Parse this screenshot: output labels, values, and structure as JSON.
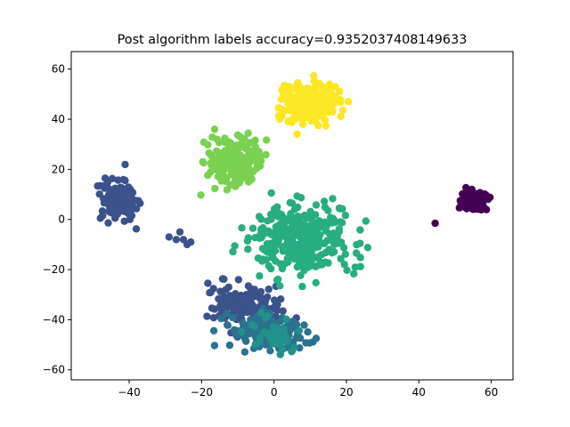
{
  "chart_data": {
    "type": "scatter",
    "title": "Post algorithm labels accuracy=0.9352037408149633",
    "xlabel": "",
    "ylabel": "",
    "xlim": [
      -56,
      66
    ],
    "ylim": [
      -64,
      67
    ],
    "xticks": [
      -40,
      -20,
      0,
      20,
      40,
      60
    ],
    "yticks": [
      -60,
      -40,
      -20,
      0,
      20,
      40,
      60
    ],
    "xtick_labels": [
      "−40",
      "−20",
      "0",
      "20",
      "40",
      "60"
    ],
    "ytick_labels": [
      "−60",
      "−40",
      "−20",
      "0",
      "20",
      "40",
      "60"
    ],
    "grid": false,
    "legend": "none",
    "marker": "filled circle",
    "colormap": "viridis",
    "clusters": [
      {
        "label": 0,
        "color": "#440154",
        "center": [
          55,
          7
        ],
        "spread": [
          3.2,
          3.0
        ],
        "count": 95,
        "extra_points": [
          [
            44.5,
            -1.5
          ]
        ]
      },
      {
        "label": 1,
        "color": "#3b528b",
        "center": [
          -43,
          8
        ],
        "spread": [
          3.8,
          6.5
        ],
        "count": 110,
        "extra_points": [
          [
            -29,
            -7
          ],
          [
            -27,
            -8
          ],
          [
            -25,
            -8
          ],
          [
            -24,
            -10
          ],
          [
            -26,
            -5
          ],
          [
            -23,
            -9
          ]
        ]
      },
      {
        "label": 1,
        "color": "#3b528b",
        "center": [
          -8,
          -34
        ],
        "spread": [
          7.5,
          7.0
        ],
        "count": 150
      },
      {
        "label": 2,
        "color": "#2c728e",
        "center": [
          -2,
          -45
        ],
        "spread": [
          8.0,
          5.0
        ],
        "count": 150
      },
      {
        "label": 3,
        "color": "#21918c",
        "center": [
          0,
          -46
        ],
        "spread": [
          5.0,
          5.0
        ],
        "count": 40
      },
      {
        "label": 4,
        "color": "#27ad81",
        "center": [
          8,
          -8
        ],
        "spread": [
          10.5,
          9.5
        ],
        "count": 330
      },
      {
        "label": 5,
        "color": "#7ad151",
        "center": [
          -11,
          23
        ],
        "spread": [
          5.5,
          6.5
        ],
        "count": 200
      },
      {
        "label": 6,
        "color": "#fde725",
        "center": [
          10,
          46
        ],
        "spread": [
          5.5,
          6.0
        ],
        "count": 210
      }
    ]
  }
}
